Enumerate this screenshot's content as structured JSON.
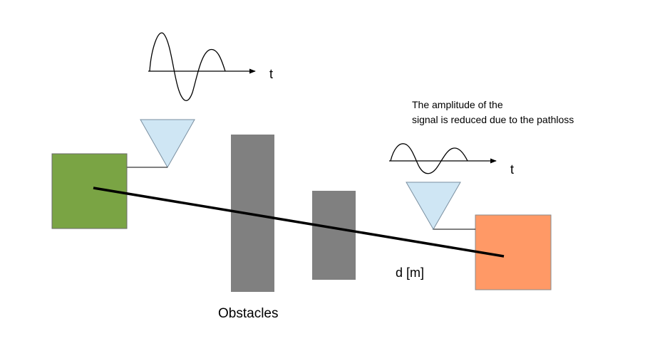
{
  "labels": {
    "time_axis_top": "t",
    "time_axis_bottom": "t",
    "amplitude_note_line1": "The amplitude of the",
    "amplitude_note_line2": "signal is reduced due to the pathloss",
    "distance": "d [m]",
    "obstacles": "Obstacles"
  },
  "colors": {
    "transmitter": "#7aa444",
    "receiver": "#ff9966",
    "antenna": "#cfe6f4",
    "obstacle": "#808080",
    "line": "#000000"
  }
}
